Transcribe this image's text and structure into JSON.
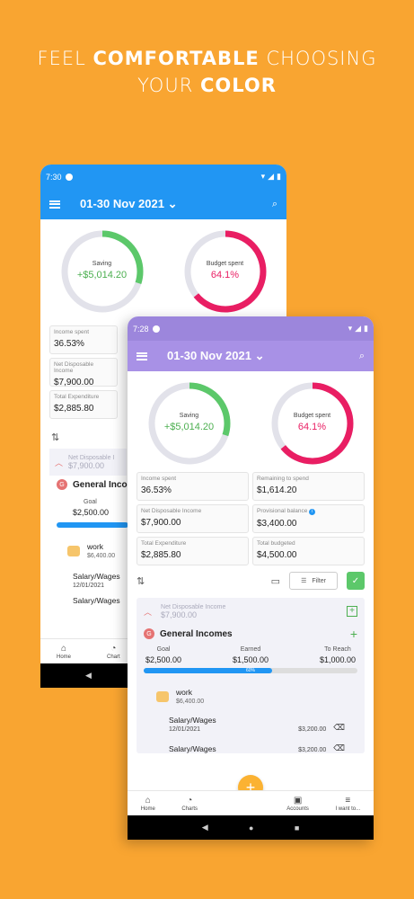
{
  "headline": {
    "pre": "FEEL ",
    "bold1": "COMFORTABLE",
    "mid": " CHOOSING",
    "pre2": "YOUR ",
    "bold2": "COLOR"
  },
  "colors": {
    "background": "#f9a531",
    "blue_theme": "#2196f3",
    "purple_theme": "#a891e6",
    "saving_ring": "#5cc86a",
    "budget_ring": "#e91e63"
  },
  "back_phone": {
    "time": "7:30",
    "date_range": "01-30 Nov 2021",
    "saving_label": "Saving",
    "saving_value": "+$5,014.20",
    "budget_label": "Budget spent",
    "budget_value": "64.1%",
    "income_spent_label": "Income spent",
    "income_spent_value": "36.53%",
    "ndi_label": "Net Disposable Income",
    "ndi_value": "$7,900.00",
    "total_exp_label": "Total Expenditure",
    "total_exp_value": "$2,885.80",
    "section_ndi_label": "Net Disposable I",
    "section_ndi_value": "$7,900.00",
    "general_incomes": "General Incom",
    "goal_label": "Goal",
    "goal_value": "$2,500.00",
    "work_label": "work",
    "work_amount": "$6,400.00",
    "salary1_label": "Salary/Wages",
    "salary1_date": "12/01/2021",
    "salary2_label": "Salary/Wages",
    "nav_home": "Home",
    "nav_charts": "Chart"
  },
  "front_phone": {
    "time": "7:28",
    "date_range": "01-30 Nov 2021",
    "saving_label": "Saving",
    "saving_value": "+$5,014.20",
    "saving_fraction": 0.3,
    "budget_label": "Budget spent",
    "budget_value": "64.1%",
    "budget_fraction": 0.641,
    "cards": [
      {
        "label": "Income spent",
        "value": "36.53%"
      },
      {
        "label": "Remaining to spend",
        "value": "$1,614.20"
      },
      {
        "label": "Net Disposable Income",
        "value": "$7,900.00"
      },
      {
        "label": "Provisional balance",
        "value": "$3,400.00"
      },
      {
        "label": "Total Expenditure",
        "value": "$2,885.80"
      },
      {
        "label": "Total budgeted",
        "value": "$4,500.00"
      }
    ],
    "filter_label": "Filter",
    "section_ndi_label": "Net Disposable Income",
    "section_ndi_value": "$7,900.00",
    "badge_letter": "G",
    "general_incomes": "General Incomes",
    "goal_label": "Goal",
    "goal_value": "$2,500.00",
    "earned_label": "Earned",
    "earned_value": "$1,500.00",
    "reach_label": "To Reach",
    "reach_value": "$1,000.00",
    "progress_percent": 60,
    "progress_label": "60%",
    "work_label": "work",
    "work_amount": "$6,400.00",
    "salary1_label": "Salary/Wages",
    "salary1_date": "12/01/2021",
    "salary1_amount": "$3,200.00",
    "salary2_label": "Salary/Wages",
    "salary2_amount": "$3,200.00",
    "nav": [
      {
        "label": "Home",
        "icon": "home-icon"
      },
      {
        "label": "Charts",
        "icon": "chart-icon"
      },
      {
        "label": "Accounts",
        "icon": "wallet-icon"
      },
      {
        "label": "I want to...",
        "icon": "menu-icon"
      }
    ]
  }
}
